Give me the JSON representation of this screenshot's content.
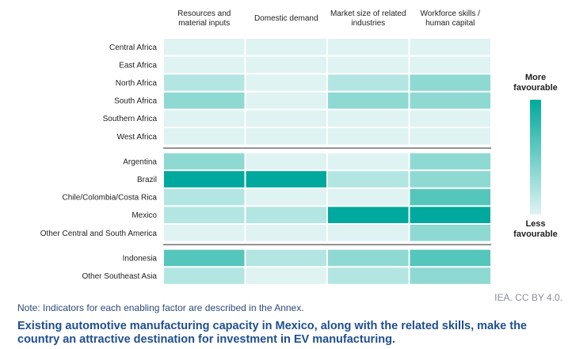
{
  "chart_data": {
    "type": "heatmap",
    "columns": [
      "Resources and material inputs",
      "Domestic demand",
      "Market size of related industries",
      "Workforce skills / human capital"
    ],
    "column_lines": [
      [
        "Resources and",
        "material inputs"
      ],
      [
        "Domestic demand"
      ],
      [
        "Market size of related",
        "industries"
      ],
      [
        "Workforce skills /",
        "human capital"
      ]
    ],
    "groups": [
      {
        "rows": [
          {
            "label": "Central Africa",
            "values": [
              1,
              1,
              1,
              1
            ]
          },
          {
            "label": "East Africa",
            "values": [
              1,
              1,
              1,
              1
            ]
          },
          {
            "label": "North Africa",
            "values": [
              2,
              1,
              2,
              3
            ]
          },
          {
            "label": "South Africa",
            "values": [
              3,
              1,
              3,
              3
            ]
          },
          {
            "label": "Southern Africa",
            "values": [
              1,
              1,
              1,
              1
            ]
          },
          {
            "label": "West Africa",
            "values": [
              1,
              1,
              1,
              1
            ]
          }
        ]
      },
      {
        "rows": [
          {
            "label": "Argentina",
            "values": [
              3,
              1,
              1,
              3
            ]
          },
          {
            "label": "Brazil",
            "values": [
              5,
              5,
              2,
              3
            ]
          },
          {
            "label": "Chile/Colombia/Costa Rica",
            "values": [
              2,
              1,
              1,
              4
            ]
          },
          {
            "label": "Mexico",
            "values": [
              2,
              2,
              5,
              5
            ]
          },
          {
            "label": "Other Central and South America",
            "values": [
              1,
              1,
              1,
              3
            ]
          }
        ]
      },
      {
        "rows": [
          {
            "label": "Indonesia",
            "values": [
              4,
              2,
              3,
              4
            ]
          },
          {
            "label": "Other Southeast Asia",
            "values": [
              2,
              1,
              2,
              3
            ]
          }
        ]
      }
    ],
    "scale": {
      "min": 1,
      "max": 5
    },
    "colors": [
      "#dff3f2",
      "#b3e6e2",
      "#8fd9d3",
      "#55c6bc",
      "#00a99d"
    ],
    "legend": {
      "top_label": [
        "More",
        "favourable"
      ],
      "bottom_label": [
        "Less",
        "favourable"
      ]
    }
  },
  "credit": "IEA. CC BY 4.0.",
  "note": "Note: Indicators for each enabling factor are described in the Annex.",
  "caption": "Existing automotive manufacturing capacity in Mexico, along with the related skills, make the country an attractive destination for investment in EV manufacturing."
}
